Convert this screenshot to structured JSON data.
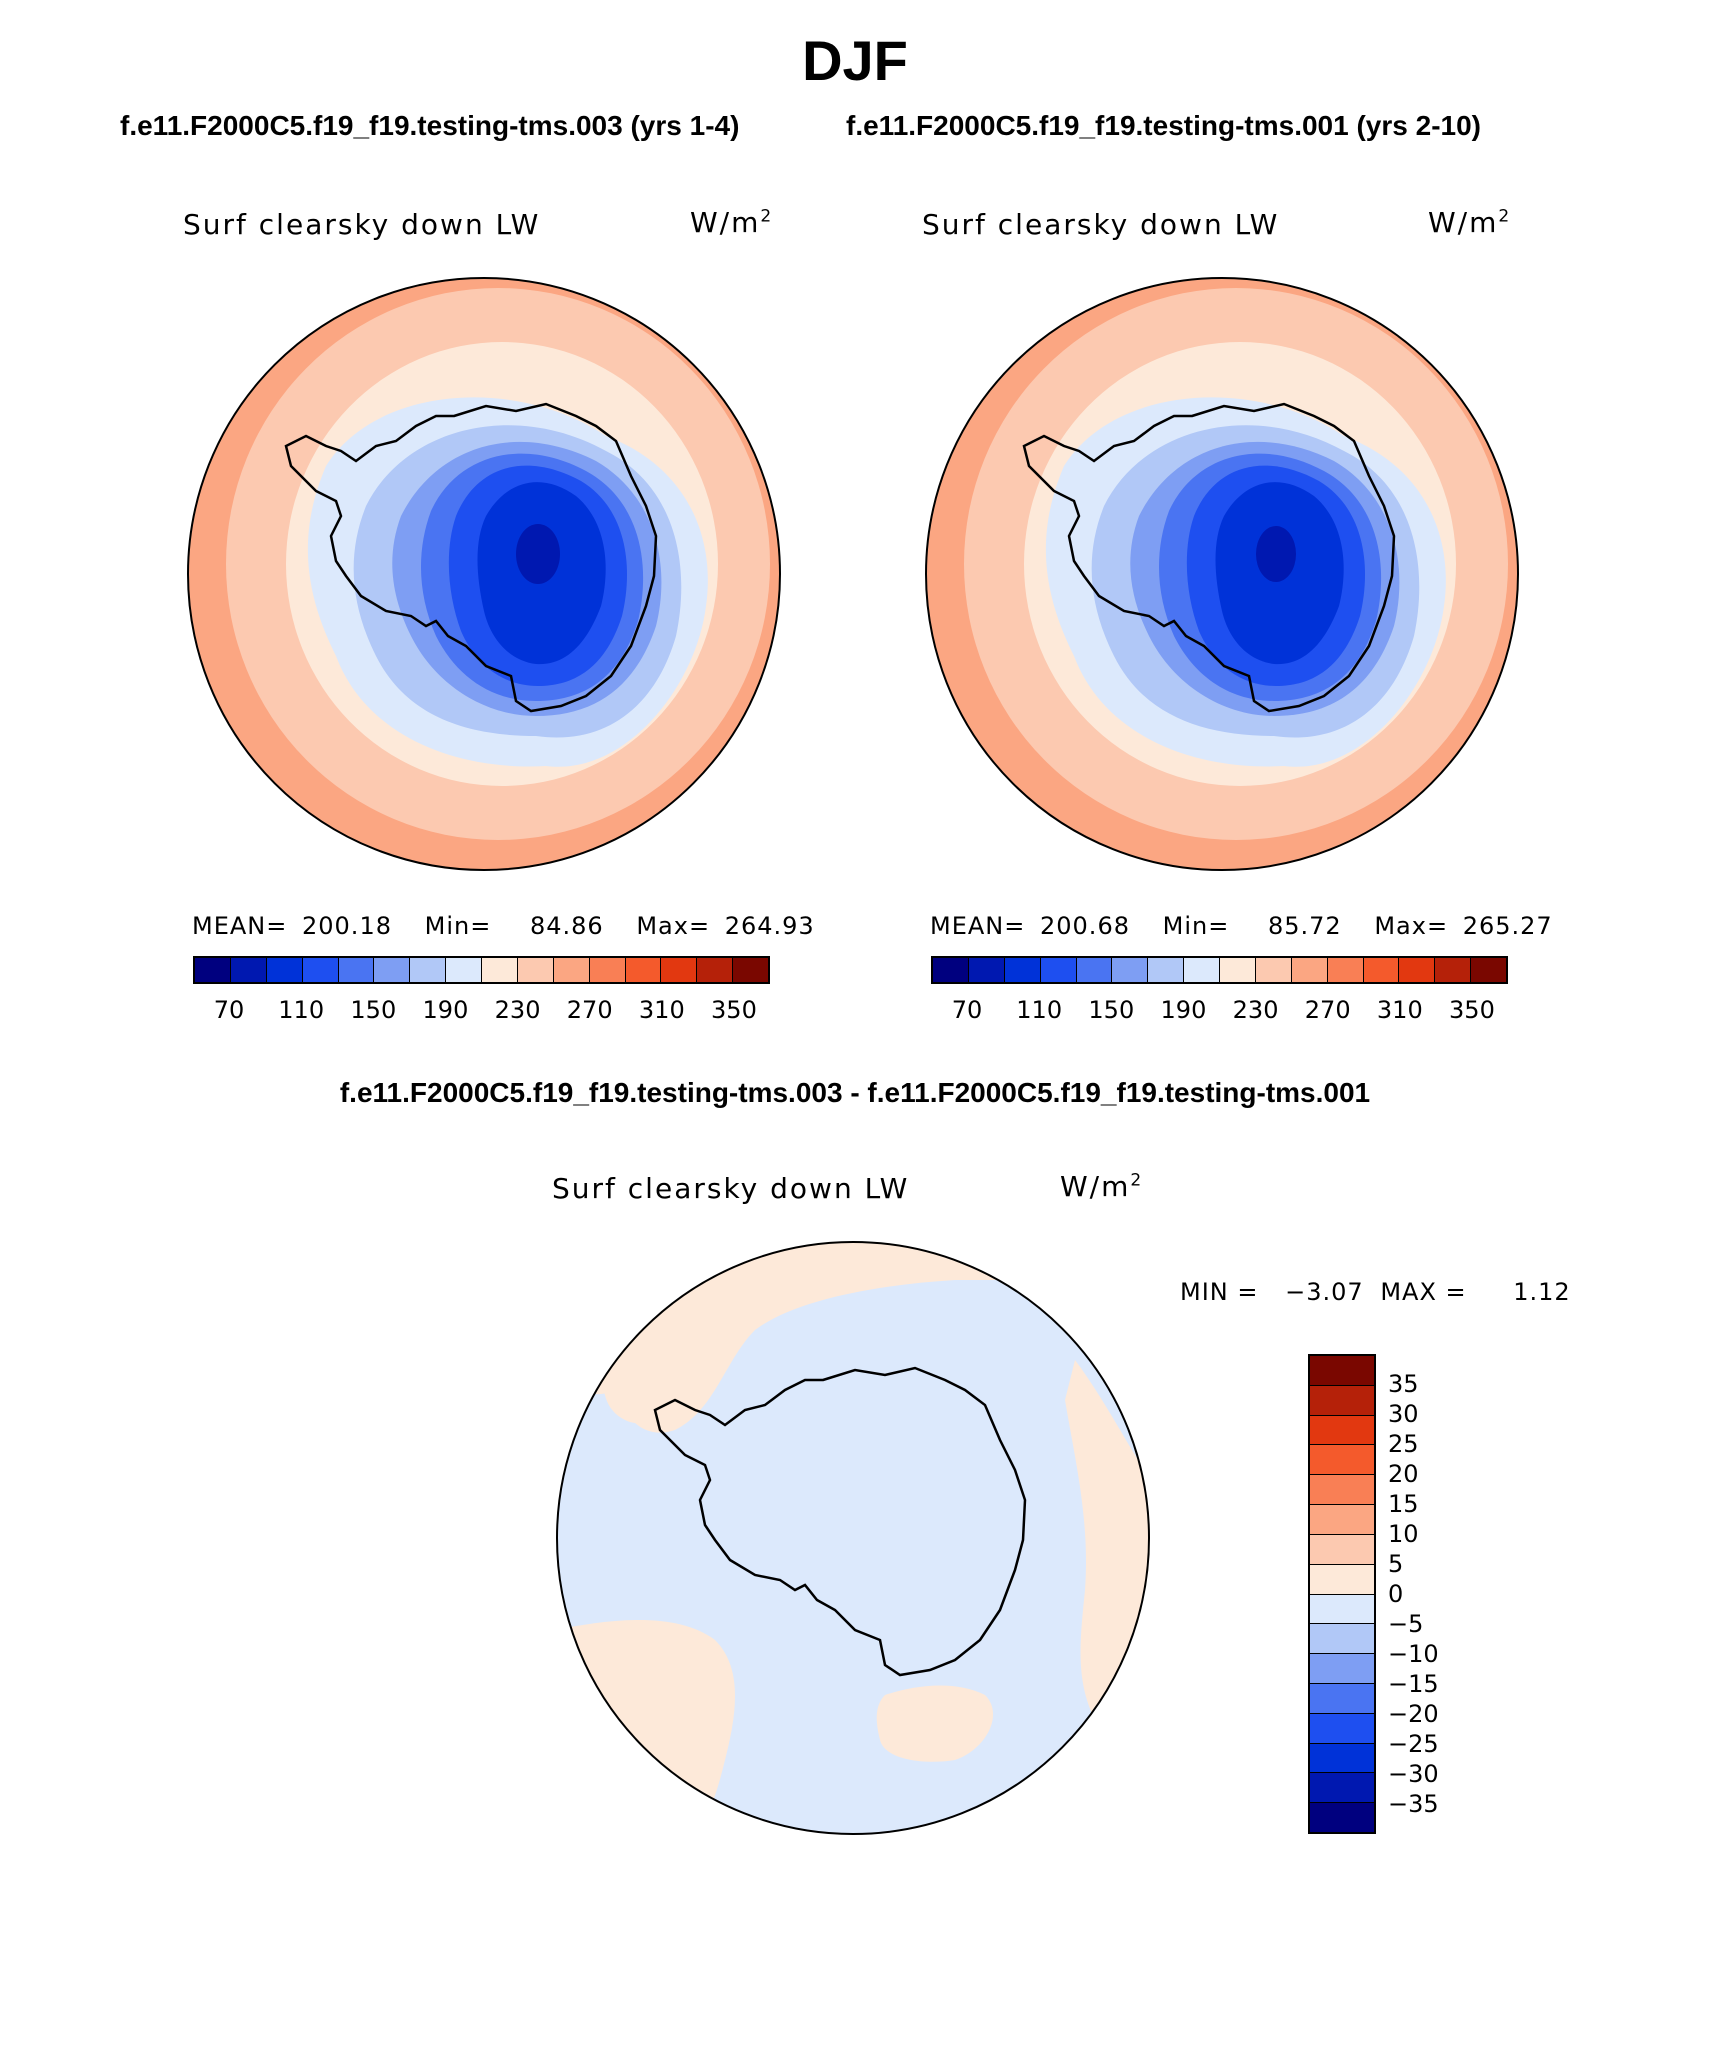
{
  "season": "DJF",
  "case1": {
    "title": "f.e11.F2000C5.f19_f19.testing-tms.003 (yrs 1-4)",
    "variable": "Surf clearsky down LW",
    "units_base": "W/m",
    "units_exp": "2",
    "mean_label": "MEAN=",
    "mean": "200.18",
    "min_label": "Min=",
    "min": "84.86",
    "max_label": "Max=",
    "max": "264.93"
  },
  "case2": {
    "title": "f.e11.F2000C5.f19_f19.testing-tms.001 (yrs 2-10)",
    "variable": "Surf clearsky down LW",
    "units_base": "W/m",
    "units_exp": "2",
    "mean_label": "MEAN=",
    "mean": "200.68",
    "min_label": "Min=",
    "min": "85.72",
    "max_label": "Max=",
    "max": "265.27"
  },
  "diff": {
    "title": "f.e11.F2000C5.f19_f19.testing-tms.003 - f.e11.F2000C5.f19_f19.testing-tms.001",
    "variable": "Surf clearsky down LW",
    "units_base": "W/m",
    "units_exp": "2",
    "min_label": "MIN =",
    "min": "−3.07",
    "max_label": "MAX =",
    "max": "1.12"
  },
  "colorbar_main": {
    "colors": [
      "#00007f",
      "#0018b0",
      "#0032d8",
      "#1e4ff0",
      "#4a74f2",
      "#7e9ef3",
      "#b1c8f7",
      "#dce9fc",
      "#fde9d9",
      "#fcc9b0",
      "#fba682",
      "#f97f55",
      "#f45a2c",
      "#e23810",
      "#b52109",
      "#7a0700"
    ],
    "ticks": [
      "70",
      "110",
      "150",
      "190",
      "230",
      "270",
      "310",
      "350"
    ]
  },
  "colorbar_diff": {
    "colors_top_to_bottom": [
      "#7a0700",
      "#b52109",
      "#e23810",
      "#f45a2c",
      "#f97f55",
      "#fba682",
      "#fcc9b0",
      "#fde9d9",
      "#dce9fc",
      "#b1c8f7",
      "#7e9ef3",
      "#4a74f2",
      "#1e4ff0",
      "#0032d8",
      "#0018b0",
      "#00007f"
    ],
    "ticks": [
      "35",
      "30",
      "25",
      "20",
      "15",
      "10",
      "5",
      "0",
      "−5",
      "−10",
      "−15",
      "−20",
      "−25",
      "−30",
      "−35"
    ]
  },
  "map_colors": {
    "ring_outer": "#fba682",
    "ring_mid": "#fcc9b0",
    "ring_inner": "#fde9d9",
    "ice_edge": "#dce9fc",
    "level_190": "#b1c8f7",
    "level_150": "#7e9ef3",
    "level_110a": "#4a74f2",
    "level_110b": "#1e4ff0",
    "level_70": "#0032d8",
    "level_min": "#0018b0",
    "diff_pos": "#fde9d9",
    "diff_neg": "#dce9fc"
  }
}
